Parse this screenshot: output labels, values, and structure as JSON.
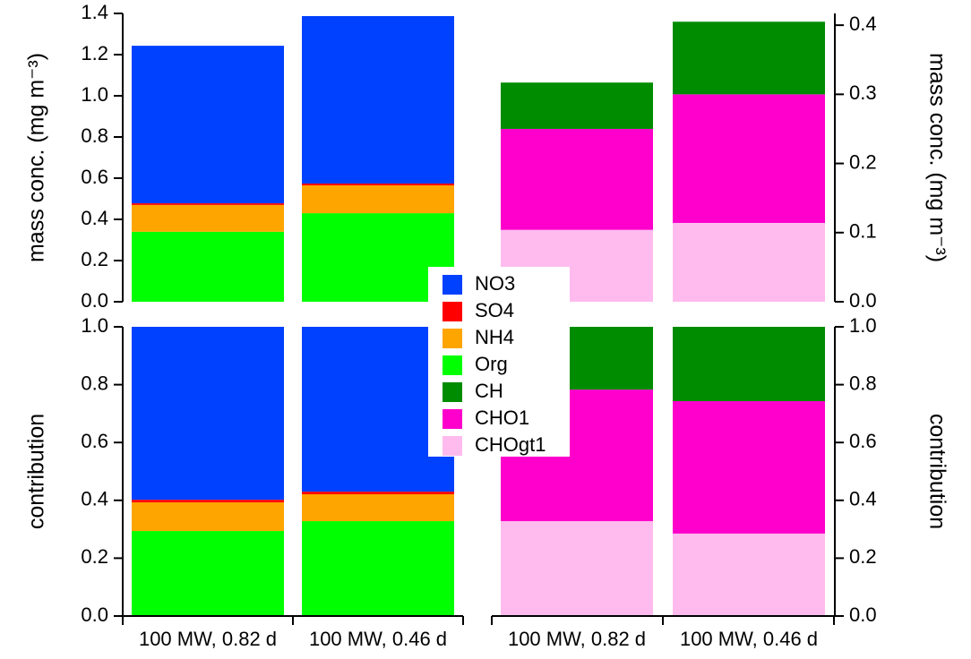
{
  "chart_data": [
    {
      "type": "stacked_bar",
      "ylabel": "mass conc. (mg m⁻³)",
      "yaxis": "left",
      "ylim": [
        0,
        1.4
      ],
      "yticks": [
        {
          "value": 0,
          "label": "0.0"
        },
        0.2,
        0.4,
        0.6,
        0.8,
        {
          "value": 1,
          "label": "1.0"
        },
        1.2,
        1.4
      ],
      "series": [
        {
          "name": "Org",
          "color": "#00ff00",
          "values": [
            0.34,
            0.43
          ]
        },
        {
          "name": "NH4",
          "color": "#ffa500",
          "values": [
            0.13,
            0.135
          ]
        },
        {
          "name": "SO4",
          "color": "#ff0000",
          "values": [
            0.008,
            0.009
          ]
        },
        {
          "name": "NO3",
          "color": "#0040ff",
          "values": [
            0.765,
            0.813
          ]
        }
      ]
    },
    {
      "type": "stacked_bar",
      "ylabel": "mass conc. (mg m⁻³)",
      "yaxis": "right",
      "ylim": [
        0,
        0.417
      ],
      "yticks": [
        {
          "value": 0,
          "label": "0.0"
        },
        0.1,
        0.2,
        0.3,
        0.4
      ],
      "series": [
        {
          "name": "CHOgt1",
          "color": "#ffbbee",
          "values": [
            0.104,
            0.114
          ]
        },
        {
          "name": "CHO1",
          "color": "#ff00cc",
          "values": [
            0.146,
            0.186
          ]
        },
        {
          "name": "CH",
          "color": "#008c00",
          "values": [
            0.067,
            0.105
          ]
        }
      ]
    },
    {
      "type": "stacked_bar",
      "ylabel": "contribution",
      "yaxis": "left",
      "ylim": [
        0,
        1
      ],
      "yticks": [
        {
          "value": 0,
          "label": "0.0"
        },
        0.2,
        0.4,
        0.6,
        0.8,
        {
          "value": 1,
          "label": "1.0"
        }
      ],
      "categories": [
        "100 MW, 0.82 d",
        "100 MW, 0.46 d"
      ],
      "series": [
        {
          "name": "Org",
          "color": "#00ff00",
          "values": [
            0.294,
            0.328
          ]
        },
        {
          "name": "NH4",
          "color": "#ffa500",
          "values": [
            0.099,
            0.093
          ]
        },
        {
          "name": "SO4",
          "color": "#ff0000",
          "values": [
            0.009,
            0.009
          ]
        },
        {
          "name": "NO3",
          "color": "#0040ff",
          "values": [
            0.598,
            0.57
          ]
        }
      ]
    },
    {
      "type": "stacked_bar",
      "ylabel": "contribution",
      "yaxis": "right",
      "ylim": [
        0,
        1
      ],
      "yticks": [
        {
          "value": 0,
          "label": "0.0"
        },
        0.2,
        0.4,
        0.6,
        0.8,
        {
          "value": 1,
          "label": "1.0"
        }
      ],
      "categories": [
        "100 MW, 0.82 d",
        "100 MW, 0.46 d"
      ],
      "series": [
        {
          "name": "CHOgt1",
          "color": "#ffbbee",
          "values": [
            0.328,
            0.285
          ]
        },
        {
          "name": "CHO1",
          "color": "#ff00cc",
          "values": [
            0.455,
            0.458
          ]
        },
        {
          "name": "CH",
          "color": "#008c00",
          "values": [
            0.217,
            0.257
          ]
        }
      ]
    }
  ]
}
